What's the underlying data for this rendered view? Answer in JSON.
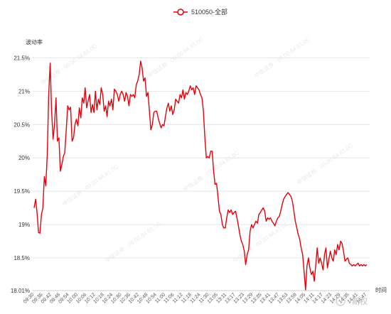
{
  "legend": {
    "label": "510050-全部"
  },
  "watermark": {
    "text": "中信证券 · 00.00.84.81.0C"
  },
  "corner_logo": {
    "text": "期权"
  },
  "chart_data": {
    "type": "line",
    "ylabel": "波动率",
    "xlabel": "时间",
    "ylim": [
      18.01,
      21.6
    ],
    "y_ticks": [
      {
        "value": 21.5,
        "label": "21.5%"
      },
      {
        "value": 21.0,
        "label": "21%"
      },
      {
        "value": 20.5,
        "label": "20.5%"
      },
      {
        "value": 20.0,
        "label": "20%"
      },
      {
        "value": 19.5,
        "label": "19.5%"
      },
      {
        "value": 19.0,
        "label": "19%"
      },
      {
        "value": 18.5,
        "label": "18.5%"
      },
      {
        "value": 18.01,
        "label": "18.01%"
      }
    ],
    "x_ticks": [
      "09:30",
      "09:36",
      "09:42",
      "09:48",
      "09:54",
      "10:00",
      "10:06",
      "10:12",
      "10:18",
      "10:24",
      "10:30",
      "10:36",
      "10:42",
      "10:48",
      "10:54",
      "11:00",
      "11:06",
      "11:12",
      "11:18",
      "11:24",
      "11:30",
      "13:05",
      "13:11",
      "13:17",
      "13:23",
      "13:29",
      "13:35",
      "13:41",
      "13:47",
      "13:53",
      "13:59",
      "14:05",
      "14:11",
      "14:17",
      "14:23",
      "14:29",
      "14:35",
      "14:41",
      "14:47"
    ],
    "colors": {
      "line": "#e8000b",
      "grid": "#e4e4e4"
    },
    "series": [
      {
        "name": "510050-全部",
        "points": [
          [
            "09:30",
            19.25
          ],
          [
            "09:31",
            19.38
          ],
          [
            "09:32",
            19.18
          ],
          [
            "09:33",
            18.88
          ],
          [
            "09:34",
            18.87
          ],
          [
            "09:35",
            19.15
          ],
          [
            "09:36",
            19.25
          ],
          [
            "09:37",
            19.72
          ],
          [
            "09:38",
            19.58
          ],
          [
            "09:39",
            20.05
          ],
          [
            "09:40",
            20.95
          ],
          [
            "09:41",
            21.42
          ],
          [
            "09:42",
            20.7
          ],
          [
            "09:43",
            20.28
          ],
          [
            "09:44",
            20.5
          ],
          [
            "09:45",
            20.9
          ],
          [
            "09:46",
            20.25
          ],
          [
            "09:47",
            20.3
          ],
          [
            "09:48",
            19.8
          ],
          [
            "09:49",
            19.9
          ],
          [
            "09:50",
            20.02
          ],
          [
            "09:51",
            20.08
          ],
          [
            "09:52",
            20.42
          ],
          [
            "09:53",
            20.78
          ],
          [
            "09:54",
            20.72
          ],
          [
            "09:55",
            20.76
          ],
          [
            "09:56",
            20.25
          ],
          [
            "09:57",
            20.3
          ],
          [
            "09:58",
            20.5
          ],
          [
            "09:59",
            20.58
          ],
          [
            "10:00",
            20.48
          ],
          [
            "10:01",
            20.75
          ],
          [
            "10:02",
            20.6
          ],
          [
            "10:03",
            20.9
          ],
          [
            "10:04",
            20.82
          ],
          [
            "10:05",
            21.05
          ],
          [
            "10:06",
            20.75
          ],
          [
            "10:07",
            20.85
          ],
          [
            "10:08",
            20.95
          ],
          [
            "10:09",
            20.68
          ],
          [
            "10:10",
            20.8
          ],
          [
            "10:11",
            20.68
          ],
          [
            "10:12",
            21.0
          ],
          [
            "10:13",
            20.72
          ],
          [
            "10:14",
            20.88
          ],
          [
            "10:15",
            20.8
          ],
          [
            "10:16",
            21.05
          ],
          [
            "10:17",
            20.95
          ],
          [
            "10:18",
            20.7
          ],
          [
            "10:19",
            20.78
          ],
          [
            "10:20",
            20.62
          ],
          [
            "10:21",
            20.85
          ],
          [
            "10:22",
            20.78
          ],
          [
            "10:23",
            20.88
          ],
          [
            "10:24",
            20.72
          ],
          [
            "10:25",
            21.03
          ],
          [
            "10:26",
            21.0
          ],
          [
            "10:27",
            20.95
          ],
          [
            "10:28",
            20.85
          ],
          [
            "10:29",
            20.95
          ],
          [
            "10:30",
            21.0
          ],
          [
            "10:31",
            20.95
          ],
          [
            "10:32",
            20.85
          ],
          [
            "10:33",
            20.98
          ],
          [
            "10:34",
            20.92
          ],
          [
            "10:35",
            20.78
          ],
          [
            "10:36",
            20.95
          ],
          [
            "10:37",
            20.92
          ],
          [
            "10:38",
            20.95
          ],
          [
            "10:39",
            20.9
          ],
          [
            "10:40",
            21.1
          ],
          [
            "10:41",
            21.15
          ],
          [
            "10:42",
            21.25
          ],
          [
            "10:43",
            21.45
          ],
          [
            "10:44",
            21.35
          ],
          [
            "10:45",
            21.15
          ],
          [
            "10:46",
            21.2
          ],
          [
            "10:47",
            20.92
          ],
          [
            "10:48",
            20.98
          ],
          [
            "10:49",
            20.7
          ],
          [
            "10:50",
            20.42
          ],
          [
            "10:51",
            20.5
          ],
          [
            "10:52",
            20.68
          ],
          [
            "10:53",
            20.7
          ],
          [
            "10:54",
            20.7
          ],
          [
            "10:55",
            20.6
          ],
          [
            "10:56",
            20.52
          ],
          [
            "10:57",
            20.45
          ],
          [
            "10:58",
            20.5
          ],
          [
            "10:59",
            20.48
          ],
          [
            "11:00",
            20.62
          ],
          [
            "11:01",
            20.75
          ],
          [
            "11:02",
            20.82
          ],
          [
            "11:03",
            20.7
          ],
          [
            "11:04",
            20.78
          ],
          [
            "11:05",
            20.65
          ],
          [
            "11:06",
            20.72
          ],
          [
            "11:07",
            20.88
          ],
          [
            "11:08",
            20.85
          ],
          [
            "11:09",
            20.82
          ],
          [
            "11:10",
            20.95
          ],
          [
            "11:11",
            20.9
          ],
          [
            "11:12",
            21.02
          ],
          [
            "11:13",
            20.88
          ],
          [
            "11:14",
            20.98
          ],
          [
            "11:15",
            20.95
          ],
          [
            "11:16",
            21.0
          ],
          [
            "11:17",
            21.08
          ],
          [
            "11:18",
            21.02
          ],
          [
            "11:19",
            21.05
          ],
          [
            "11:20",
            20.95
          ],
          [
            "11:21",
            21.08
          ],
          [
            "11:22",
            21.05
          ],
          [
            "11:23",
            21.02
          ],
          [
            "11:24",
            20.95
          ],
          [
            "11:25",
            20.9
          ],
          [
            "11:26",
            20.7
          ],
          [
            "11:27",
            20.3
          ],
          [
            "11:28",
            20.0
          ],
          [
            "11:29",
            20.02
          ],
          [
            "11:30",
            20.0
          ],
          [
            "13:00",
            20.1
          ],
          [
            "13:01",
            20.1
          ],
          [
            "13:02",
            19.8
          ],
          [
            "13:03",
            19.6
          ],
          [
            "13:04",
            19.62
          ],
          [
            "13:05",
            19.42
          ],
          [
            "13:06",
            19.2
          ],
          [
            "13:07",
            19.15
          ],
          [
            "13:08",
            19.0
          ],
          [
            "13:09",
            18.95
          ],
          [
            "13:10",
            18.95
          ],
          [
            "13:11",
            19.1
          ],
          [
            "13:12",
            19.22
          ],
          [
            "13:13",
            19.18
          ],
          [
            "13:14",
            19.22
          ],
          [
            "13:15",
            19.15
          ],
          [
            "13:16",
            19.18
          ],
          [
            "13:17",
            19.2
          ],
          [
            "13:18",
            19.1
          ],
          [
            "13:19",
            18.98
          ],
          [
            "13:20",
            18.85
          ],
          [
            "13:21",
            18.75
          ],
          [
            "13:22",
            18.7
          ],
          [
            "13:23",
            18.6
          ],
          [
            "13:24",
            18.4
          ],
          [
            "13:25",
            18.55
          ],
          [
            "13:26",
            18.62
          ],
          [
            "13:27",
            18.9
          ],
          [
            "13:28",
            19.0
          ],
          [
            "13:29",
            18.95
          ],
          [
            "13:30",
            19.0
          ],
          [
            "13:31",
            19.05
          ],
          [
            "13:32",
            19.02
          ],
          [
            "13:33",
            19.15
          ],
          [
            "13:34",
            19.18
          ],
          [
            "13:35",
            19.22
          ],
          [
            "13:36",
            19.25
          ],
          [
            "13:37",
            19.2
          ],
          [
            "13:38",
            19.05
          ],
          [
            "13:39",
            19.1
          ],
          [
            "13:40",
            19.08
          ],
          [
            "13:41",
            19.1
          ],
          [
            "13:42",
            19.05
          ],
          [
            "13:43",
            19.02
          ],
          [
            "13:44",
            18.98
          ],
          [
            "13:45",
            19.05
          ],
          [
            "13:46",
            19.1
          ],
          [
            "13:47",
            19.12
          ],
          [
            "13:48",
            19.2
          ],
          [
            "13:49",
            19.3
          ],
          [
            "13:50",
            19.38
          ],
          [
            "13:51",
            19.42
          ],
          [
            "13:52",
            19.45
          ],
          [
            "13:53",
            19.48
          ],
          [
            "13:54",
            19.45
          ],
          [
            "13:55",
            19.42
          ],
          [
            "13:56",
            19.35
          ],
          [
            "13:57",
            19.2
          ],
          [
            "13:58",
            19.05
          ],
          [
            "13:59",
            18.95
          ],
          [
            "14:00",
            18.85
          ],
          [
            "14:01",
            18.78
          ],
          [
            "14:02",
            18.65
          ],
          [
            "14:03",
            18.55
          ],
          [
            "14:04",
            18.3
          ],
          [
            "14:05",
            18.02
          ],
          [
            "14:06",
            18.38
          ],
          [
            "14:07",
            18.5
          ],
          [
            "14:08",
            18.35
          ],
          [
            "14:09",
            18.25
          ],
          [
            "14:10",
            18.3
          ],
          [
            "14:11",
            18.15
          ],
          [
            "14:12",
            18.4
          ],
          [
            "14:13",
            18.65
          ],
          [
            "14:14",
            18.42
          ],
          [
            "14:15",
            18.5
          ],
          [
            "14:16",
            18.42
          ],
          [
            "14:17",
            18.32
          ],
          [
            "14:18",
            18.55
          ],
          [
            "14:19",
            18.65
          ],
          [
            "14:20",
            18.35
          ],
          [
            "14:21",
            18.48
          ],
          [
            "14:22",
            18.6
          ],
          [
            "14:23",
            18.5
          ],
          [
            "14:24",
            18.45
          ],
          [
            "14:25",
            18.62
          ],
          [
            "14:26",
            18.55
          ],
          [
            "14:27",
            18.7
          ],
          [
            "14:28",
            18.62
          ],
          [
            "14:29",
            18.75
          ],
          [
            "14:30",
            18.72
          ],
          [
            "14:31",
            18.6
          ],
          [
            "14:32",
            18.45
          ],
          [
            "14:33",
            18.48
          ],
          [
            "14:34",
            18.5
          ],
          [
            "14:35",
            18.42
          ],
          [
            "14:36",
            18.4
          ],
          [
            "14:37",
            18.38
          ],
          [
            "14:38",
            18.4
          ],
          [
            "14:39",
            18.38
          ],
          [
            "14:40",
            18.4
          ],
          [
            "14:41",
            18.42
          ],
          [
            "14:42",
            18.38
          ],
          [
            "14:43",
            18.4
          ],
          [
            "14:44",
            18.38
          ],
          [
            "14:45",
            18.4
          ],
          [
            "14:46",
            18.38
          ],
          [
            "14:47",
            18.4
          ]
        ]
      }
    ],
    "grid": true,
    "legend_position": "top-center"
  }
}
